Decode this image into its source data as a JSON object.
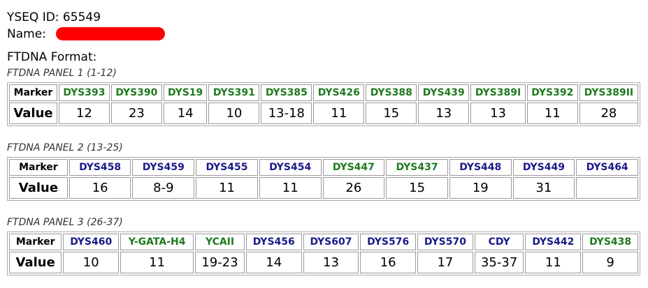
{
  "header": {
    "id_line": "YSEQ ID: 65549",
    "name_label": "Name:",
    "format_label": "FTDNA Format:"
  },
  "panels": [
    {
      "title": "FTDNA PANEL 1 (1-12)",
      "marker_label": "Marker",
      "value_label": "Value",
      "markers": [
        {
          "name": "DYS393",
          "color": "#1f7a1f",
          "value": 12
        },
        {
          "name": "DYS390",
          "color": "#1f7a1f",
          "value": 23
        },
        {
          "name": "DYS19",
          "color": "#1f7a1f",
          "value": 14
        },
        {
          "name": "DYS391",
          "color": "#1f7a1f",
          "value": 10
        },
        {
          "name": "DYS385",
          "color": "#1f7a1f",
          "value": "13-18"
        },
        {
          "name": "DYS426",
          "color": "#1f7a1f",
          "value": 11
        },
        {
          "name": "DYS388",
          "color": "#1f7a1f",
          "value": 15
        },
        {
          "name": "DYS439",
          "color": "#1f7a1f",
          "value": 13
        },
        {
          "name": "DYS389I",
          "color": "#1f7a1f",
          "value": 13
        },
        {
          "name": "DYS392",
          "color": "#1f7a1f",
          "value": 11
        },
        {
          "name": "DYS389II",
          "color": "#1f7a1f",
          "value": 28
        }
      ]
    },
    {
      "title": "FTDNA PANEL 2 (13-25)",
      "marker_label": "Marker",
      "value_label": "Value",
      "markers": [
        {
          "name": "DYS458",
          "color": "#1a1a8a",
          "value": 16
        },
        {
          "name": "DYS459",
          "color": "#1a1a8a",
          "value": "8-9"
        },
        {
          "name": "DYS455",
          "color": "#1a1a8a",
          "value": 11
        },
        {
          "name": "DYS454",
          "color": "#1a1a8a",
          "value": 11
        },
        {
          "name": "DYS447",
          "color": "#1f7a1f",
          "value": 26
        },
        {
          "name": "DYS437",
          "color": "#1f7a1f",
          "value": 15
        },
        {
          "name": "DYS448",
          "color": "#1a1a8a",
          "value": 19
        },
        {
          "name": "DYS449",
          "color": "#1a1a8a",
          "value": 31
        },
        {
          "name": "DYS464",
          "color": "#1a1a8a",
          "value": null
        }
      ]
    },
    {
      "title": "FTDNA PANEL 3 (26-37)",
      "marker_label": "Marker",
      "value_label": "Value",
      "markers": [
        {
          "name": "DYS460",
          "color": "#1a1a8a",
          "value": 10
        },
        {
          "name": "Y-GATA-H4",
          "color": "#1f7a1f",
          "value": 11
        },
        {
          "name": "YCAII",
          "color": "#1f7a1f",
          "value": "19-23"
        },
        {
          "name": "DYS456",
          "color": "#1a1a8a",
          "value": 14
        },
        {
          "name": "DYS607",
          "color": "#1a1a8a",
          "value": 13
        },
        {
          "name": "DYS576",
          "color": "#1a1a8a",
          "value": 16
        },
        {
          "name": "DYS570",
          "color": "#1a1a8a",
          "value": 17
        },
        {
          "name": "CDY",
          "color": "#1a1a8a",
          "value": "35-37"
        },
        {
          "name": "DYS442",
          "color": "#1a1a8a",
          "value": 11
        },
        {
          "name": "DYS438",
          "color": "#1f7a1f",
          "value": 9
        }
      ]
    }
  ]
}
